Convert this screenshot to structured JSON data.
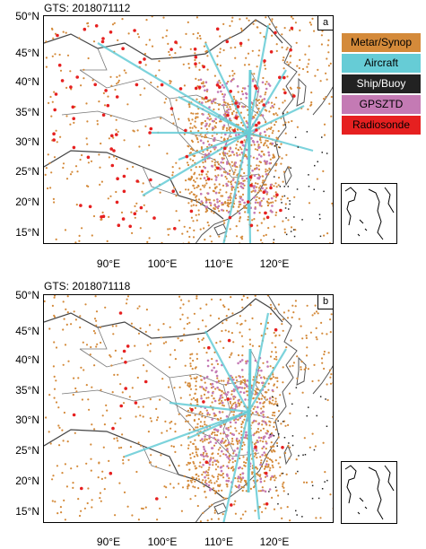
{
  "panels": [
    {
      "title": "GTS: 2018071112",
      "label": "a"
    },
    {
      "title": "GTS: 2018071118",
      "label": "b"
    }
  ],
  "lat_labels": [
    "50°N",
    "45°N",
    "40°N",
    "35°N",
    "30°N",
    "25°N",
    "20°N",
    "15°N"
  ],
  "lon_labels": [
    "90°E",
    "100°E",
    "110°E",
    "120°E"
  ],
  "legend": [
    {
      "label": "Metar/Synop",
      "color": "#d48a3a"
    },
    {
      "label": "Aircraft",
      "color": "#66ccd6"
    },
    {
      "label": "Ship/Buoy",
      "color": "#222222"
    },
    {
      "label": "GPSZTD",
      "color": "#c47ab4"
    },
    {
      "label": "Radiosonde",
      "color": "#e62020"
    }
  ]
}
